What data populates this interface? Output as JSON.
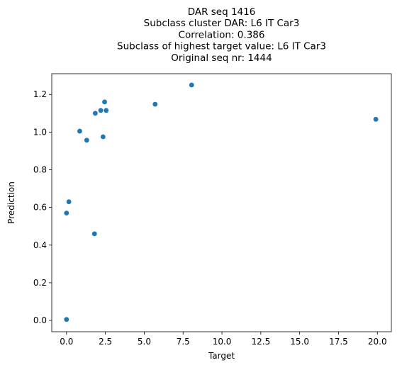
{
  "chart_data": {
    "type": "scatter",
    "title_lines": [
      "DAR seq 1416",
      "Subclass cluster DAR: L6 IT Car3",
      "Correlation: 0.386",
      "Subclass of highest target value: L6 IT Car3",
      "Original seq nr: 1444"
    ],
    "xlabel": "Target",
    "ylabel": "Prediction",
    "xlim": [
      -0.95,
      20.9
    ],
    "ylim": [
      -0.06,
      1.31
    ],
    "xticks": [
      0.0,
      2.5,
      5.0,
      7.5,
      10.0,
      12.5,
      15.0,
      17.5,
      20.0
    ],
    "xtick_labels": [
      "0.0",
      "2.5",
      "5.0",
      "7.5",
      "10.0",
      "12.5",
      "15.0",
      "17.5",
      "20.0"
    ],
    "yticks": [
      0.0,
      0.2,
      0.4,
      0.6,
      0.8,
      1.0,
      1.2
    ],
    "ytick_labels": [
      "0.0",
      "0.2",
      "0.4",
      "0.6",
      "0.8",
      "1.0",
      "1.2"
    ],
    "grid": false,
    "point_color": "#1f77b4",
    "points": [
      {
        "x": 0.0,
        "y": 0.005
      },
      {
        "x": 0.0,
        "y": 0.57
      },
      {
        "x": 0.15,
        "y": 0.63
      },
      {
        "x": 0.85,
        "y": 1.005
      },
      {
        "x": 1.3,
        "y": 0.957
      },
      {
        "x": 1.8,
        "y": 0.46
      },
      {
        "x": 1.85,
        "y": 1.1
      },
      {
        "x": 2.2,
        "y": 1.115
      },
      {
        "x": 2.35,
        "y": 0.975
      },
      {
        "x": 2.45,
        "y": 1.16
      },
      {
        "x": 2.55,
        "y": 1.115
      },
      {
        "x": 5.7,
        "y": 1.148
      },
      {
        "x": 8.05,
        "y": 1.25
      },
      {
        "x": 19.9,
        "y": 1.068
      }
    ]
  }
}
